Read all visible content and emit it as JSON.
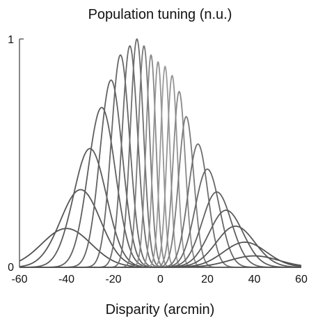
{
  "chart_data": {
    "type": "line",
    "title": "Population tuning (n.u.)",
    "xlabel": "Disparity (arcmin)",
    "ylabel": "",
    "xlim": [
      -60,
      60
    ],
    "ylim": [
      0,
      1
    ],
    "x_ticks": [
      "-60",
      "-40",
      "-20",
      "0",
      "20",
      "40",
      "60"
    ],
    "y_ticks": [
      "0",
      "1"
    ],
    "grid": false,
    "legend": "none",
    "curve_model": "gaussian",
    "series": [
      {
        "peak_x": -40,
        "peak_y": 0.17,
        "width_sd": 10.5,
        "color": "#505050"
      },
      {
        "peak_x": -34,
        "peak_y": 0.34,
        "width_sd": 8.5,
        "color": "#555555"
      },
      {
        "peak_x": -30,
        "peak_y": 0.52,
        "width_sd": 7.0,
        "color": "#5a5a5a"
      },
      {
        "peak_x": -25,
        "peak_y": 0.7,
        "width_sd": 5.8,
        "color": "#5e5e5e"
      },
      {
        "peak_x": -21,
        "peak_y": 0.82,
        "width_sd": 4.8,
        "color": "#626262"
      },
      {
        "peak_x": -17,
        "peak_y": 0.93,
        "width_sd": 3.9,
        "color": "#666666"
      },
      {
        "peak_x": -13,
        "peak_y": 0.97,
        "width_sd": 3.3,
        "color": "#6a6a6a"
      },
      {
        "peak_x": -10,
        "peak_y": 1.0,
        "width_sd": 2.8,
        "color": "#6e6e6e"
      },
      {
        "peak_x": -7,
        "peak_y": 0.97,
        "width_sd": 2.4,
        "color": "#7a7a7a"
      },
      {
        "peak_x": -4,
        "peak_y": 0.93,
        "width_sd": 2.1,
        "color": "#888888"
      },
      {
        "peak_x": -1,
        "peak_y": 0.9,
        "width_sd": 2.0,
        "color": "#949494"
      },
      {
        "peak_x": 2,
        "peak_y": 0.88,
        "width_sd": 2.0,
        "color": "#9a9a9a"
      },
      {
        "peak_x": 5,
        "peak_y": 0.84,
        "width_sd": 2.2,
        "color": "#949494"
      },
      {
        "peak_x": 8,
        "peak_y": 0.77,
        "width_sd": 2.6,
        "color": "#888888"
      },
      {
        "peak_x": 11,
        "peak_y": 0.66,
        "width_sd": 3.2,
        "color": "#7a7a7a"
      },
      {
        "peak_x": 16,
        "peak_y": 0.54,
        "width_sd": 4.2,
        "color": "#6e6e6e"
      },
      {
        "peak_x": 20,
        "peak_y": 0.43,
        "width_sd": 5.2,
        "color": "#666666"
      },
      {
        "peak_x": 24,
        "peak_y": 0.33,
        "width_sd": 6.2,
        "color": "#606060"
      },
      {
        "peak_x": 28,
        "peak_y": 0.25,
        "width_sd": 7.2,
        "color": "#5c5c5c"
      },
      {
        "peak_x": 32,
        "peak_y": 0.18,
        "width_sd": 8.2,
        "color": "#585858"
      },
      {
        "peak_x": 36,
        "peak_y": 0.11,
        "width_sd": 9.2,
        "color": "#555555"
      },
      {
        "peak_x": 40,
        "peak_y": 0.05,
        "width_sd": 10.5,
        "color": "#525252"
      }
    ]
  }
}
